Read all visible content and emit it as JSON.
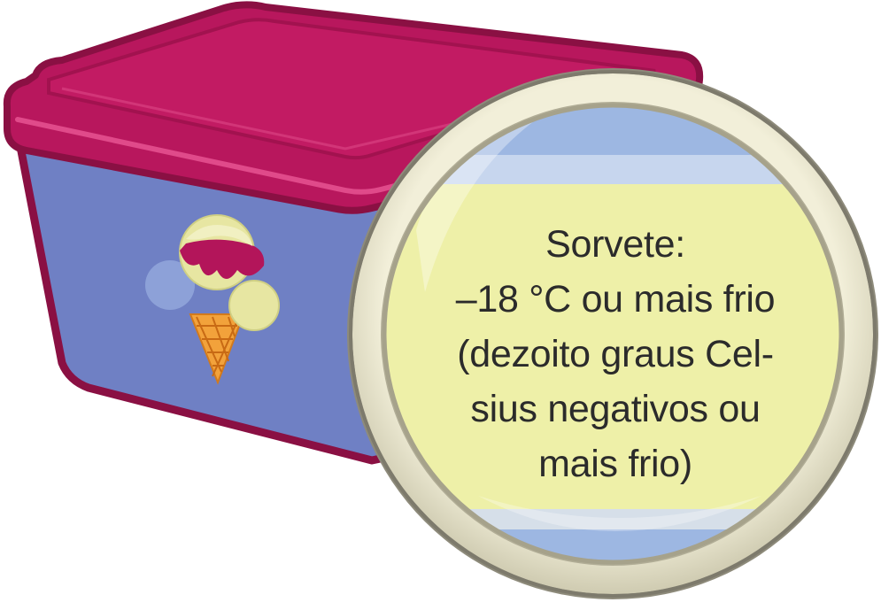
{
  "label": {
    "lines": [
      "Sorvete:",
      "–18 °C ou mais frio",
      "(dezoito graus Cel-",
      "sius negativos ou",
      "mais frio)"
    ]
  },
  "colors": {
    "lid": "#b8175d",
    "lid_highlight": "#e04a8a",
    "lid_outline": "#8a1043",
    "container_body": "#6f80c4",
    "container_outline": "#8a1043",
    "magnifier_rim": "#e6e3c9",
    "magnifier_rim_shadow": "#8e8b7b",
    "label_yellow": "#eef0a8",
    "label_blue": "#9db7e2",
    "scoop_cream": "#e7e6a2",
    "scoop_berry": "#b3155a",
    "scoop_blue": "#8da1d8",
    "cone": "#f2a23b"
  },
  "icons": {
    "sticker": "ice-cream-cone-icon",
    "lens": "magnifying-glass-icon"
  }
}
